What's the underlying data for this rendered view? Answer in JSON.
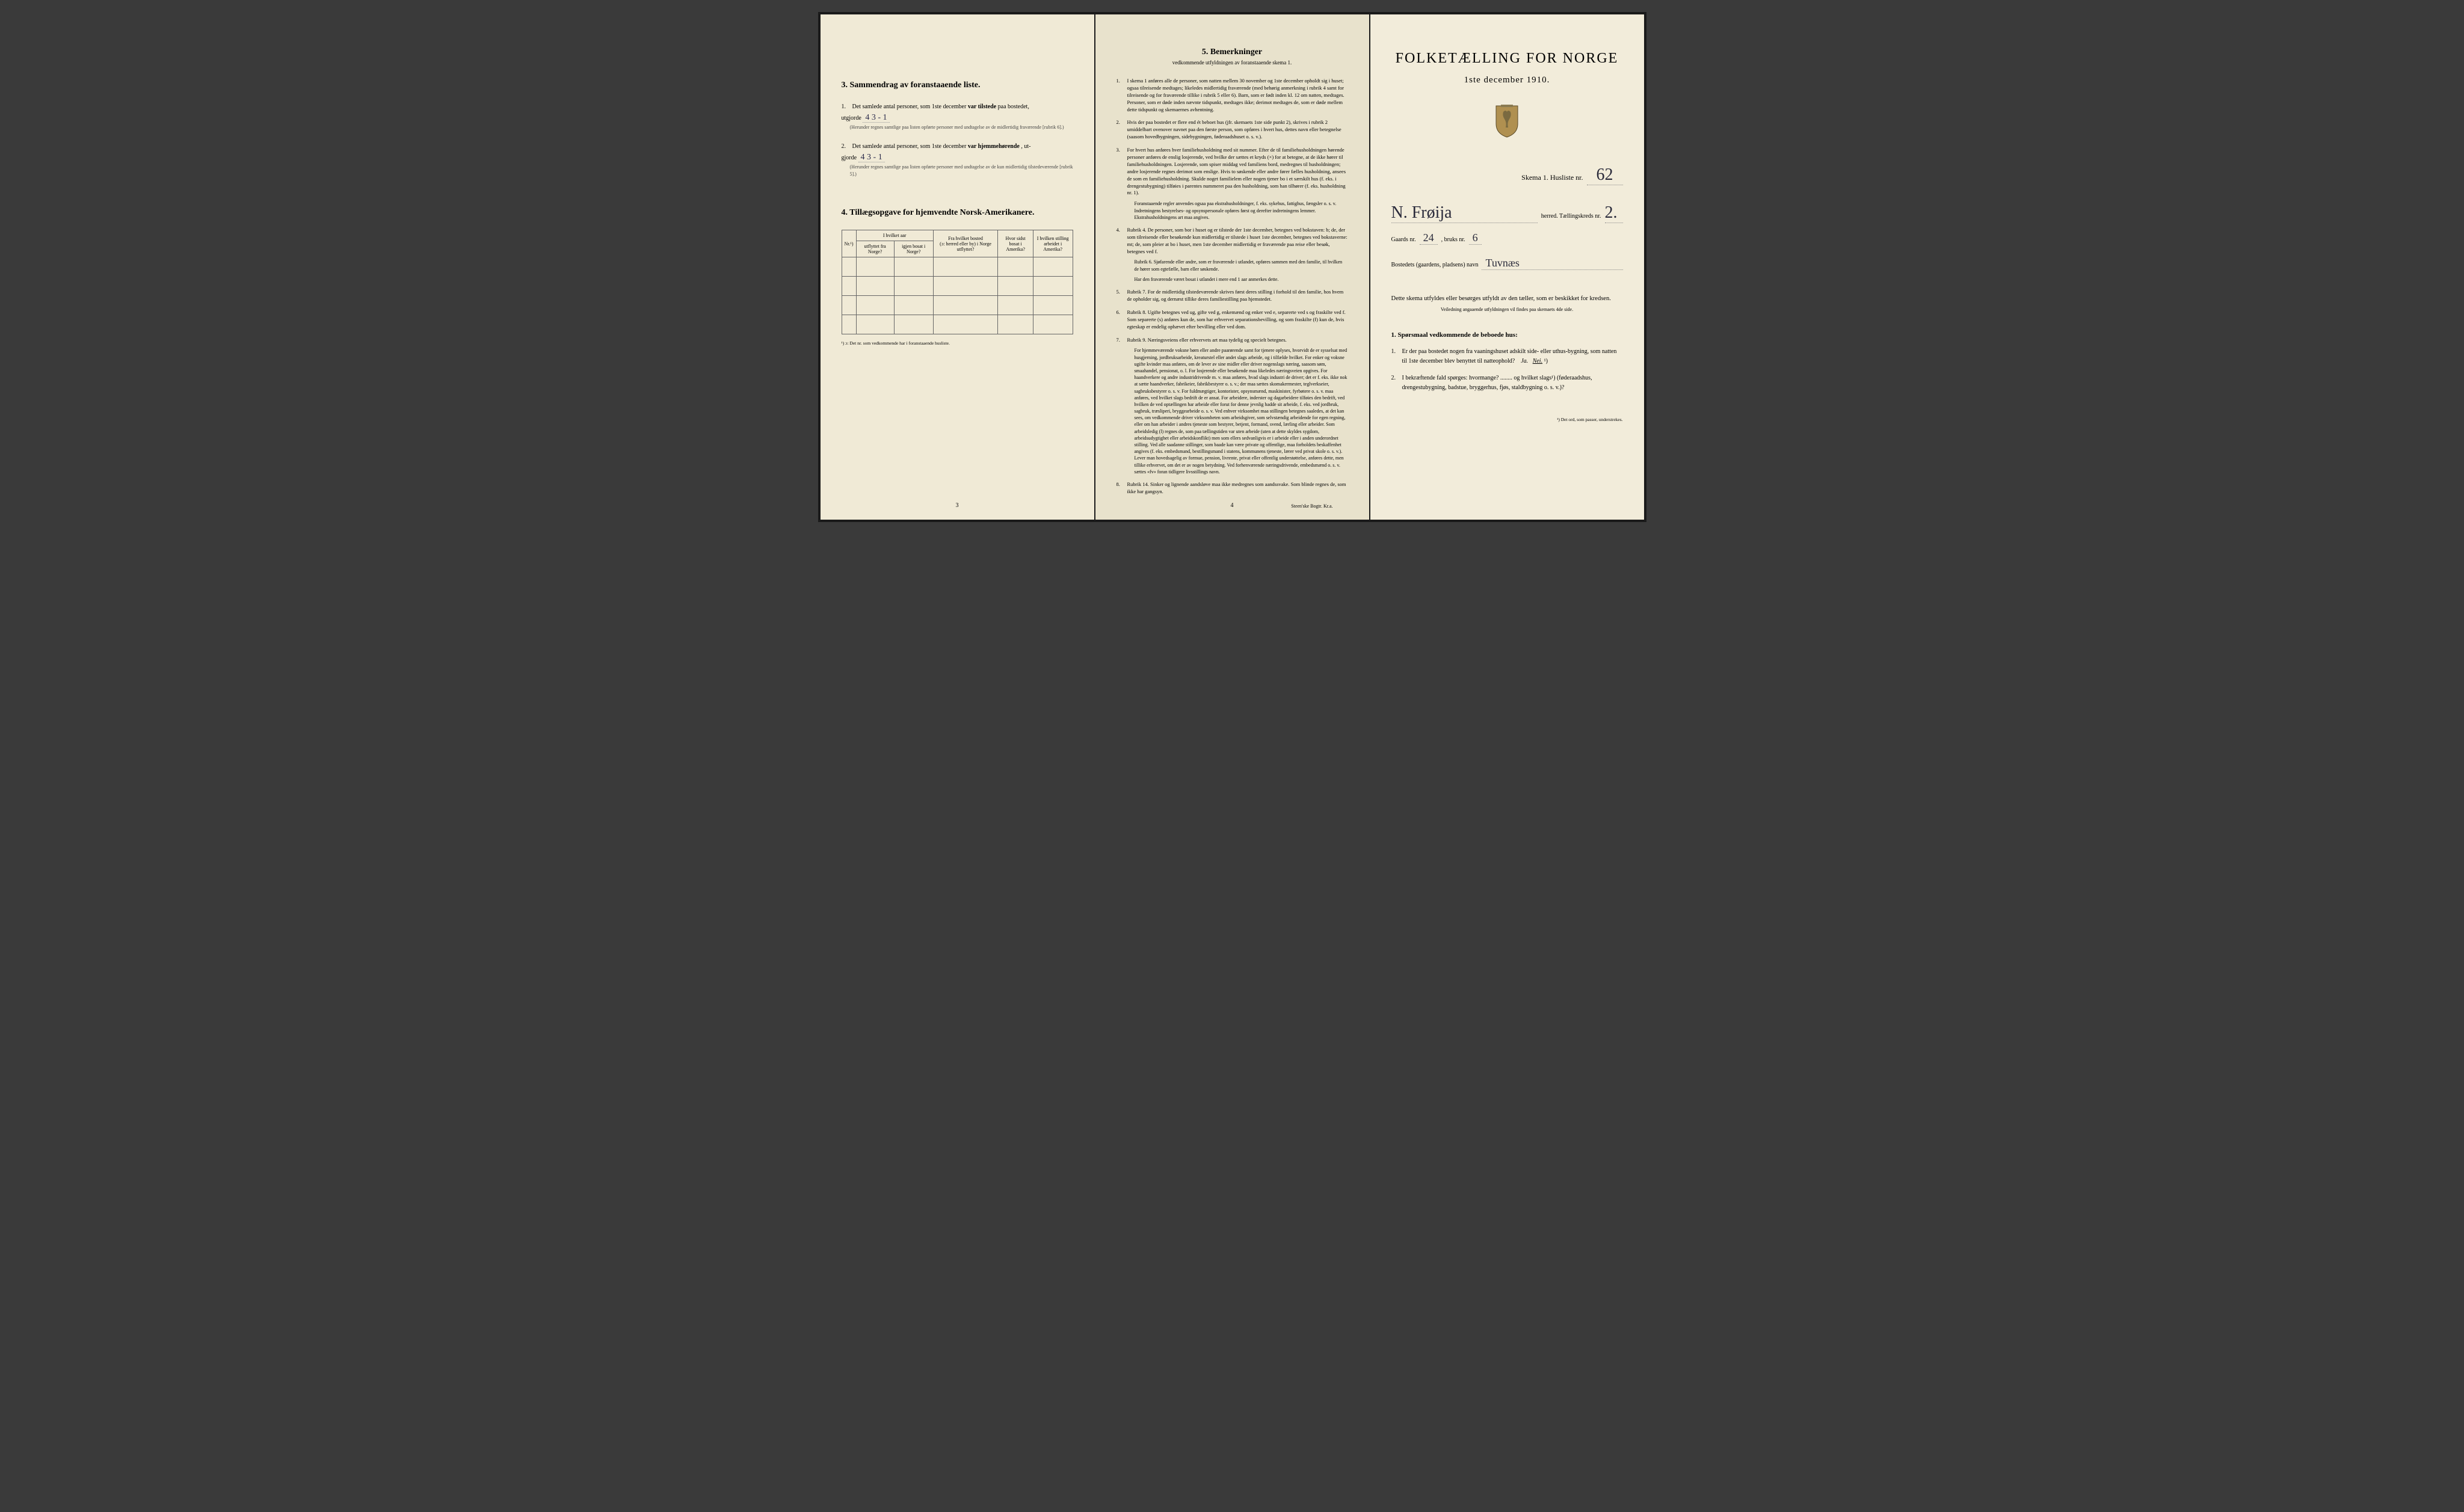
{
  "left": {
    "section3": {
      "title": "3.   Sammendrag av foranstaaende liste.",
      "item1": {
        "num": "1.",
        "prefix": "Det samlede antal personer, som 1ste december",
        "bold": "var tilstede",
        "suffix": "paa bostedet,",
        "line2prefix": "utgjorde",
        "value": "4  3 - 1",
        "note": "(Herunder regnes samtlige paa listen opførte personer med undtagelse av de midlertidig fraværende [rubrik 6].)"
      },
      "item2": {
        "num": "2.",
        "prefix": "Det samlede antal personer, som 1ste december",
        "bold": "var hjemmehørende",
        "suffix": ", ut-",
        "line2prefix": "gjorde",
        "value": "4  3 - 1",
        "note": "(Herunder regnes samtlige paa listen opførte personer med undtagelse av de kun midlertidig tilstedeværende [rubrik 5].)"
      }
    },
    "section4": {
      "title": "4.   Tillægsopgave for hjemvendte Norsk-Amerikanere.",
      "headers": {
        "col1": "Nr.¹)",
        "col2a": "I hvilket aar",
        "col2b": "utflyttet fra Norge?",
        "col2c": "igjen bosat i Norge?",
        "col3a": "Fra hvilket bosted",
        "col3b": "(ɔ: herred eller by) i Norge utflyttet?",
        "col4a": "Hvor sidst",
        "col4b": "bosat i Amerika?",
        "col5a": "I hvilken stilling",
        "col5b": "arbeidet i Amerika?"
      },
      "footnote": "¹) ɔ: Det nr. som vedkommende har i foranstaaende husliste."
    },
    "pagenum": "3"
  },
  "center": {
    "title": "5.   Bemerkninger",
    "subtitle": "vedkommende utfyldningen av foranstaaende skema 1.",
    "items": [
      {
        "num": "1.",
        "text": "I skema 1 anføres alle de personer, som natten mellem 30 november og 1ste december opholdt sig i huset; ogsaa tilreisende medtages; likeledes midlertidig fraværende (med behørig anmerkning i rubrik 4 samt for tilreisende og for fraværende tillike i rubrik 5 eller 6). Barn, som er født inden kl. 12 om natten, medtages. Personer, som er døde inden nævnte tidspunkt, medtages ikke; derimot medtages de, som er døde mellem dette tidspunkt og skemaernes avhentning."
      },
      {
        "num": "2.",
        "text": "Hvis der paa bostedet er flere end ét beboet hus (jfr. skemaets 1ste side punkt 2), skrives i rubrik 2 umiddelbart ovenover navnet paa den første person, som opføres i hvert hus, dettes navn eller betegnelse (saasom hovedbygningen, sidebygningen, føderaadshuset o. s. v.)."
      },
      {
        "num": "3.",
        "text": "For hvert hus anføres hver familiehusholdning med sit nummer. Efter de til familiehusholdningen hørende personer anføres de enslig losjerende, ved hvilke der sættes et kryds (×) for at betegne, at de ikke hører til familiehusholdningen. Losjerende, som spiser middag ved familiens bord, medregnes til husholdningen; andre losjerende regnes derimot som enslige. Hvis to søskende eller andre fører fælles husholdning, ansees de som en familiehusholdning. Skulde noget familielem eller nogen tjener bo i et særskilt hus (f. eks. i drengestubygning) tilføies i parentes nummeret paa den husholdning, som han tilhører (f. eks. husholdning nr. 1).",
        "sub": "Foranstaaende regler anvendes ogsaa paa ekstrahusholdninger, f. eks. sykehus, fattighus, fængsler o. s. v. Indretningens bestyrelses- og opsynspersonale opføres først og derefter indretningens lemmer. Ekstrahusholdningens art maa angives."
      },
      {
        "num": "4.",
        "text": "Rubrik 4. De personer, som bor i huset og er tilstede der 1ste december, betegnes ved bokstaven: b; de, der som tilreisende eller besøkende kun midlertidig er tilstede i huset 1ste december, betegnes ved bokstaverne: mt; de, som pleier at bo i huset, men 1ste december midlertidig er fraværende paa reise eller besøk, betegnes ved f.",
        "subs": [
          "Rubrik 6. Sjøfarende eller andre, som er fraværende i utlandet, opføres sammen med den familie, til hvilken de hører som egtefælle, barn eller søskende.",
          "Har den fraværende været bosat i utlandet i mere end 1 aar anmerkes dette."
        ]
      },
      {
        "num": "5.",
        "text": "Rubrik 7. For de midlertidig tilstedeværende skrives først deres stilling i forhold til den familie, hos hvem de opholder sig, og dernæst tillike deres familiestilling paa hjemstedet."
      },
      {
        "num": "6.",
        "text": "Rubrik 8. Ugifte betegnes ved ug, gifte ved g, enkemænd og enker ved e, separerte ved s og fraskilte ved f. Som separerte (s) anføres kun de, som har erhvervet separationsbevilling, og som fraskilte (f) kun de, hvis egteskap er endelig ophævet efter bevilling eller ved dom."
      },
      {
        "num": "7.",
        "text": "Rubrik 9. Næringsveiens eller erhvervets art maa tydelig og specielt betegnes.",
        "detail": "For hjemmeværende voksne børn eller andre paarørende samt for tjenere oplyses, hvorvidt de er sysselsat med husgjerning, jordbruksarbeide, kreaturstel eller andet slags arbeide, og i tilfælde hvilket. For enker og voksne ugifte kvinder maa anføres, om de lever av sine midler eller driver nogenslags næring, saasom søm, smaahandel, pensionat, o. l. For losjerende eller besøkende maa likeledes næringsveien opgives. For haandverkere og andre industridrivende m. v. maa anføres, hvad slags industri de driver; det er f. eks. ikke nok at sætte haandverker, fabrikeier, fabrikbestyrer o. s. v.; der maa sættes skomakermester, teglverkseier, sagbruksbestyrer o. s. v. For fuldmægtiger, kontorister, opsynsmænd, maskinister, fyrbøtere o. s. v. maa anføres, ved hvilket slags bedrift de er ansat. For arbeidere, inderster og dagarbeidere tilføies den bedrift, ved hvilken de ved optællingen har arbeide eller forut for denne jevnlig hadde sit arbeide, f. eks. ved jordbruk, sagbruk, træsliperi, bryggearbeide o. s. v. Ved enhver virksomhet maa stillingen betegnes saaledes, at det kan sees, om vedkommende driver virksomheten som arbeidsgiver, som selvstændig arbeidende for egen regning, eller om han arbeider i andres tjeneste som bestyrer, betjent, formand, svend, lærling eller arbeider. Som arbeidsledig (l) regnes de, som paa tællingstiden var uten arbeide (uten at dette skyldes sygdom, arbeidsudygtighet eller arbeidskonflikt) men som ellers sedvanligvis er i arbeide eller i anden underordnet stilling. Ved alle saadanne stillinger, som baade kan være private og offentlige, maa forholdets beskaffenhet angives (f. eks. embedsmand, bestillingsmand i statens, kommunens tjeneste, lærer ved privat skole o. s. v.). Lever man hovedsagelig av formue, pension, livrente, privat eller offentlig understøttelse, anføres dette, men tillike erhvervet, om det er av nogen betydning. Ved forhenværende næringsdrivende, embedsmænd o. s. v. sættes «fv» foran tidligere livsstillings navn."
      },
      {
        "num": "8.",
        "text": "Rubrik 14. Sinker og lignende aandsløve maa ikke medregnes som aandssvake. Som blinde regnes de, som ikke har gangsyn."
      }
    ],
    "pagenum": "4",
    "printer": "Steen'ske Bogtr. Kr.a."
  },
  "right": {
    "title": "FOLKETÆLLING FOR NORGE",
    "date": "1ste december 1910.",
    "skema": {
      "label": "Skema 1.  Husliste nr.",
      "value": "62"
    },
    "herred": {
      "value": "N. Frøija",
      "label": "herred.  Tællingskreds nr.",
      "kreds": "2."
    },
    "gaards": {
      "label1": "Gaards nr.",
      "value1": "24",
      "label2": ", bruks nr.",
      "value2": "6"
    },
    "bosted": {
      "label": "Bostedets (gaardens, pladsens) navn",
      "value": "Tuvnæs"
    },
    "instruction": "Dette skema utfyldes eller besørges utfyldt av den tæller, som er beskikket for kredsen.",
    "inst_small": "Veiledning angaaende utfyldningen vil findes paa skemaets 4de side.",
    "q_header": "1. Spørsmaal vedkommende de beboede hus:",
    "q1": {
      "num": "1.",
      "text_pre": "Er der paa bostedet nogen fra vaaningshuset adskilt side- eller uthus-bygning, som natten til 1ste december blev benyttet til natteophold?",
      "ja": "Ja.",
      "nei": "Nei.",
      "sup": "¹)"
    },
    "q2": {
      "num": "2.",
      "text": "I bekræftende fald spørges: hvormange? ........ og hvilket slags¹) (føderaadshus, drengestubygning, badstue, bryggerhus, fjøs, staldbygning o. s. v.)?"
    },
    "bottom_note": "¹) Det ord, som passer, understrekes."
  }
}
